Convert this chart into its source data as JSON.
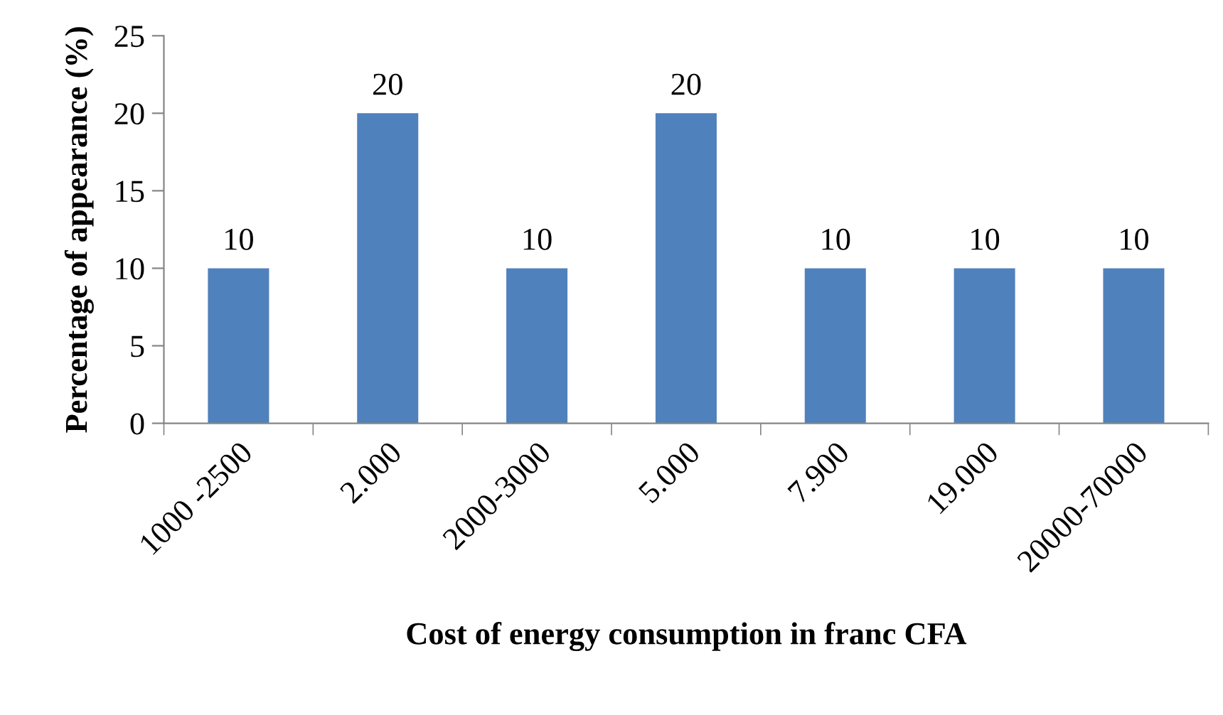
{
  "chart_data": {
    "type": "bar",
    "xlabel": "Cost of energy consumption in franc CFA",
    "ylabel": "Percentage of appearance (%)",
    "categories": [
      "1000 -2500",
      "2.000",
      "2000-3000",
      "5.000",
      "7.900",
      "19.000",
      "20000-70000"
    ],
    "values": [
      10,
      20,
      10,
      20,
      10,
      10,
      10
    ],
    "color": "#4f81bd",
    "ylim": [
      0,
      25
    ],
    "yticks": [
      0,
      5,
      10,
      15,
      20,
      25
    ],
    "data_labels": true,
    "grid": false,
    "legend": false
  }
}
